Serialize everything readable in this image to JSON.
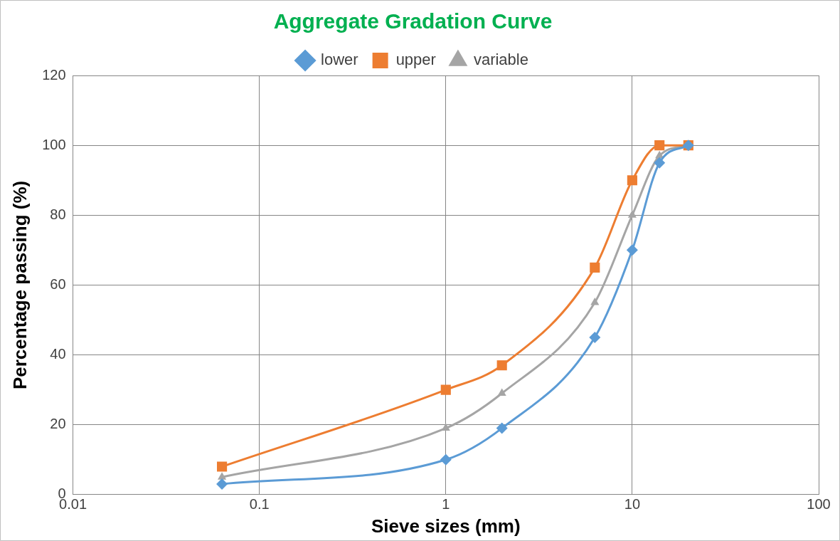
{
  "chart_data": {
    "type": "line",
    "title": "Aggregate Gradation Curve",
    "xlabel": "Sieve sizes (mm)",
    "ylabel": "Percentage passing (%)",
    "x": [
      0.063,
      1,
      2,
      6.3,
      10,
      14,
      20
    ],
    "series": [
      {
        "name": "lower",
        "color": "#5b9bd5",
        "marker": "diamond",
        "values": [
          3,
          10,
          19,
          45,
          70,
          95,
          100
        ]
      },
      {
        "name": "upper",
        "color": "#ed7d31",
        "marker": "square",
        "values": [
          8,
          30,
          37,
          65,
          90,
          100,
          100
        ]
      },
      {
        "name": "variable",
        "color": "#a5a5a5",
        "marker": "triangle",
        "values": [
          5,
          19,
          29,
          55,
          80,
          97,
          100
        ]
      }
    ],
    "log": "x",
    "xlim": [
      0.01,
      100
    ],
    "xticks": [
      0.01,
      0.1,
      1,
      10,
      100
    ],
    "ylim": [
      0,
      120
    ],
    "yticks": [
      0,
      20,
      40,
      60,
      80,
      100,
      120
    ],
    "grid": true,
    "legend": "top",
    "line_style": "solid"
  }
}
